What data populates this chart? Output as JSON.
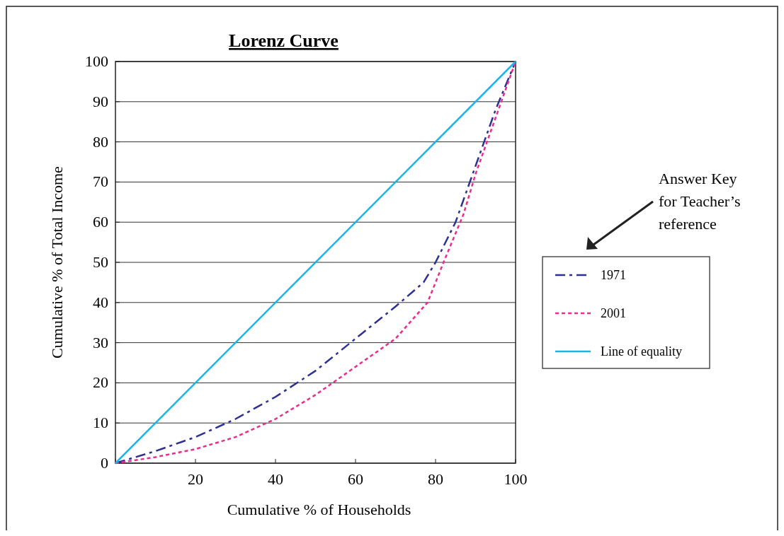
{
  "chart_data": {
    "type": "line",
    "title": "Lorenz Curve",
    "xlabel": "Cumulative % of Households",
    "ylabel": "Cumulative % of Total Income",
    "series": [
      {
        "name": "1971",
        "color": "#2e3192",
        "line_style": "dashed",
        "x": [
          0,
          10,
          20,
          30,
          40,
          50,
          60,
          70,
          77,
          80,
          85,
          90,
          95,
          100
        ],
        "values": [
          0,
          3,
          6.5,
          11,
          16.5,
          23,
          31,
          39,
          45,
          50,
          60,
          74,
          88,
          100
        ]
      },
      {
        "name": "2001",
        "color": "#ec2c8c",
        "line_style": "dotted",
        "x": [
          0,
          10,
          20,
          30,
          40,
          50,
          60,
          70,
          78,
          82,
          87,
          90,
          95,
          100
        ],
        "values": [
          0,
          1.5,
          3.5,
          6.5,
          11,
          17,
          24,
          31,
          40,
          50,
          62,
          72,
          86,
          100
        ]
      },
      {
        "name": "Line of equality",
        "color": "#1cb5e8",
        "line_style": "solid",
        "x": [
          0,
          100
        ],
        "values": [
          0,
          100
        ]
      }
    ],
    "xlim": [
      0,
      100
    ],
    "ylim": [
      0,
      100
    ],
    "xticks": [
      {
        "value": 0,
        "label": null
      },
      20,
      40,
      60,
      80,
      100
    ],
    "yticks": [
      0,
      10,
      20,
      30,
      40,
      50,
      60,
      70,
      80,
      90,
      100
    ],
    "grid": "y",
    "legend": "right",
    "marker": "none",
    "annotations": [
      "Answer Key for Teacher’s reference"
    ]
  }
}
